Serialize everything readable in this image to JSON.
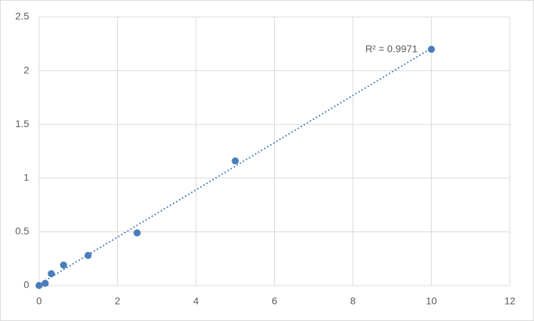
{
  "chart_data": {
    "type": "scatter",
    "x": [
      0,
      0.156,
      0.3125,
      0.625,
      1.25,
      2.5,
      5,
      10
    ],
    "series": [
      {
        "color": "#4a7ebb",
        "values": [
          0,
          0.02,
          0.11,
          0.19,
          0.28,
          0.49,
          1.16,
          2.2
        ]
      }
    ],
    "trendline": "linear",
    "annotation": "R² = 0.9971",
    "xlim": [
      0,
      12
    ],
    "xticks": [
      0,
      2,
      4,
      6,
      8,
      10,
      12
    ],
    "ylim": [
      0,
      2.5
    ],
    "yticks": [
      0,
      0.5,
      1,
      1.5,
      2,
      2.5
    ],
    "grid": true
  }
}
